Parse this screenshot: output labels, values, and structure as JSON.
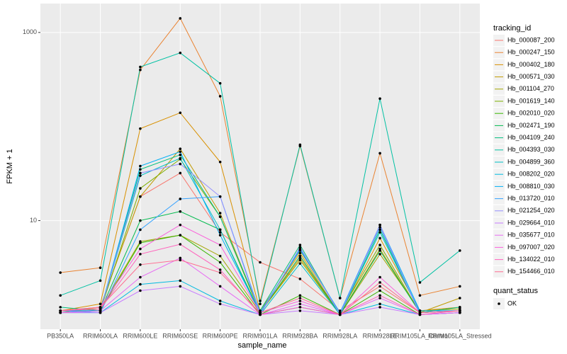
{
  "chart_data": {
    "type": "line",
    "log_y": true,
    "grid": true,
    "x_label": "sample_name",
    "y_label": "FPKM + 1",
    "categories": [
      "PB350LA",
      "RRIM600LA",
      "RRIM600LE",
      "RRIM600SE",
      "RRIM600PE",
      "RRIM901LA",
      "RRIM928BA",
      "RRIM928LA",
      "RRIM928LE",
      "RRIM105LA_Control",
      "RRIM105LA_Stressed"
    ],
    "ylim": [
      0.7,
      2030
    ],
    "yticks": [
      10,
      1000
    ],
    "legend_title": "tracking_id",
    "series": [
      {
        "name": "Hb_000087_200",
        "color": "#F8766D",
        "values": [
          1.1,
          1.2,
          18,
          32,
          7.5,
          3.6,
          2.4,
          1.1,
          2.0,
          1.05,
          1.1
        ]
      },
      {
        "name": "Hb_000247_150",
        "color": "#EA8331",
        "values": [
          2.8,
          3.15,
          400,
          1412,
          210,
          1.4,
          62,
          1.5,
          52,
          1.6,
          2.0
        ]
      },
      {
        "name": "Hb_000402_180",
        "color": "#D89000",
        "values": [
          1.1,
          1.3,
          95,
          140,
          42,
          1.1,
          4.5,
          1.0,
          6.5,
          1.1,
          1.2
        ]
      },
      {
        "name": "Hb_000571_030",
        "color": "#C09B00",
        "values": [
          1.05,
          1.2,
          18,
          58,
          12,
          1.05,
          4,
          1.0,
          5,
          1.05,
          1.5
        ]
      },
      {
        "name": "Hb_001104_270",
        "color": "#A3A500",
        "values": [
          1.1,
          1.15,
          6,
          7,
          4.2,
          1.05,
          3.8,
          1.0,
          4.4,
          1.1,
          1.15
        ]
      },
      {
        "name": "Hb_001619_140",
        "color": "#7CAE00",
        "values": [
          1.1,
          1.1,
          22,
          45,
          11,
          1.05,
          4.8,
          1.05,
          5.5,
          1.05,
          1.1
        ]
      },
      {
        "name": "Hb_002010_020",
        "color": "#39B600",
        "values": [
          1.05,
          1.1,
          5.8,
          7,
          3.6,
          1.0,
          1.6,
          1.0,
          1.8,
          1.0,
          1.05
        ]
      },
      {
        "name": "Hb_002471_190",
        "color": "#00BB4E",
        "values": [
          1.1,
          1.1,
          10,
          12.5,
          8,
          1.05,
          4.2,
          1.0,
          4.8,
          1.05,
          1.1
        ]
      },
      {
        "name": "Hb_004109_240",
        "color": "#00BF7D",
        "values": [
          1.2,
          1.1,
          35,
          50,
          11,
          1.1,
          5.5,
          1.0,
          8,
          1.05,
          1.2
        ]
      },
      {
        "name": "Hb_004393_030",
        "color": "#00C1A3",
        "values": [
          1.6,
          2.3,
          430,
          607,
          288,
          1.3,
          64,
          1.5,
          198,
          2.2,
          4.8
        ]
      },
      {
        "name": "Hb_004899_360",
        "color": "#00BFC4",
        "values": [
          1.05,
          1.1,
          30,
          46,
          8,
          1.0,
          3.5,
          1.0,
          7.5,
          1.05,
          1.1
        ]
      },
      {
        "name": "Hb_008202_020",
        "color": "#00BAE0",
        "values": [
          1.05,
          1.05,
          2.1,
          2.3,
          1.4,
          1.0,
          1.2,
          1.0,
          1.3,
          1.0,
          1.05
        ]
      },
      {
        "name": "Hb_008810_030",
        "color": "#00B0F6",
        "values": [
          1.1,
          1.1,
          38,
          54,
          7,
          1.05,
          5,
          1.05,
          9,
          1.1,
          1.1
        ]
      },
      {
        "name": "Hb_013720_010",
        "color": "#35A2FF",
        "values": [
          1.1,
          1.05,
          8,
          17,
          18,
          1.05,
          4.9,
          1.05,
          8.5,
          1.05,
          1.1
        ]
      },
      {
        "name": "Hb_021254_020",
        "color": "#9590FF",
        "values": [
          1.05,
          1.1,
          32,
          40,
          18,
          1.0,
          5.2,
          1.0,
          9,
          1.0,
          1.05
        ]
      },
      {
        "name": "Hb_029664_010",
        "color": "#C77CFF",
        "values": [
          1.05,
          1.05,
          1.8,
          2.0,
          1.3,
          1.0,
          1.1,
          1.0,
          1.2,
          1.0,
          1.05
        ]
      },
      {
        "name": "Hb_035677_010",
        "color": "#E76BF3",
        "values": [
          1.05,
          1.1,
          2.5,
          4,
          2.0,
          1.0,
          1.3,
          1.0,
          1.5,
          1.0,
          1.05
        ]
      },
      {
        "name": "Hb_097007_020",
        "color": "#FA62DB",
        "values": [
          1.1,
          1.2,
          5,
          9,
          5.5,
          1.05,
          1.4,
          1.0,
          2.5,
          1.05,
          1.1
        ]
      },
      {
        "name": "Hb_134022_010",
        "color": "#FF62BC",
        "values": [
          1.1,
          1.15,
          4.4,
          5.6,
          3,
          1.0,
          1.2,
          1.0,
          1.6,
          1.0,
          1.1
        ]
      },
      {
        "name": "Hb_154466_010",
        "color": "#FF6C90",
        "values": [
          1.1,
          1.2,
          3.4,
          3.8,
          2.8,
          1.05,
          1.5,
          1.0,
          2.2,
          1.05,
          1.1
        ]
      }
    ],
    "point_legend_title": "quant_status",
    "point_legend_entry": "OK",
    "point_color": "#000000"
  }
}
